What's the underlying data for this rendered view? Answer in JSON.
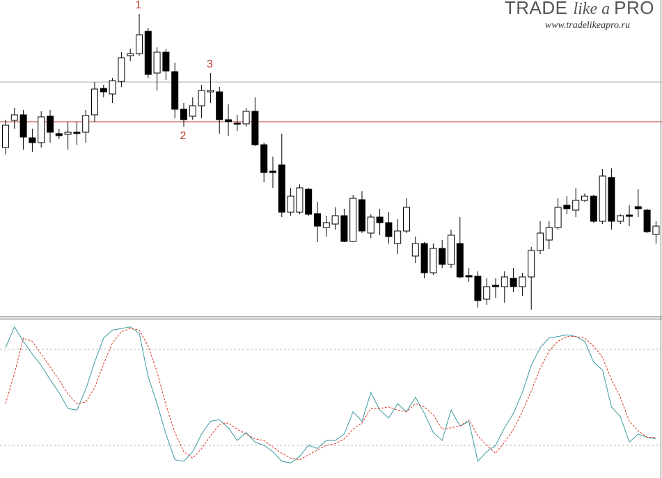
{
  "chart_data": [
    {
      "type": "candlestick",
      "ylim": [
        0,
        455
      ],
      "up_color": "#ffffff",
      "down_color": "#000000",
      "edge_color": "#000000",
      "open": [
        243,
        282,
        290,
        257,
        250,
        288,
        263,
        262,
        265,
        265,
        290,
        328,
        320,
        338,
        375,
        378,
        410,
        350,
        380,
        352,
        298,
        288,
        303,
        323,
        323,
        283,
        278,
        277,
        295,
        247,
        209,
        218,
        150,
        150,
        183,
        148,
        128,
        133,
        145,
        108,
        168,
        120,
        143,
        135,
        105,
        123,
        87,
        105,
        63,
        98,
        75,
        105,
        59,
        58,
        25,
        45,
        43,
        55,
        43,
        57,
        95,
        110,
        128,
        160,
        153,
        167,
        173,
        137,
        200,
        137,
        146,
        158,
        153,
        118
      ],
      "high": [
        283,
        300,
        297,
        270,
        295,
        297,
        270,
        280,
        280,
        297,
        337,
        333,
        343,
        380,
        385,
        435,
        415,
        387,
        385,
        365,
        307,
        315,
        333,
        350,
        330,
        305,
        290,
        300,
        315,
        250,
        230,
        263,
        185,
        190,
        185,
        165,
        145,
        157,
        155,
        175,
        180,
        147,
        155,
        150,
        140,
        170,
        115,
        107,
        105,
        110,
        125,
        143,
        70,
        65,
        55,
        55,
        65,
        70,
        63,
        100,
        137,
        137,
        170,
        173,
        185,
        177,
        175,
        212,
        213,
        147,
        160,
        183,
        155,
        137
      ],
      "low": [
        233,
        270,
        240,
        237,
        243,
        250,
        255,
        240,
        247,
        250,
        280,
        315,
        307,
        330,
        367,
        375,
        343,
        325,
        340,
        285,
        273,
        283,
        285,
        307,
        263,
        260,
        267,
        273,
        245,
        193,
        185,
        143,
        145,
        147,
        145,
        107,
        115,
        125,
        107,
        107,
        120,
        113,
        117,
        105,
        90,
        120,
        77,
        55,
        60,
        70,
        70,
        55,
        50,
        13,
        17,
        27,
        20,
        35,
        30,
        10,
        90,
        97,
        125,
        147,
        143,
        165,
        135,
        133,
        125,
        133,
        130,
        143,
        120,
        105
      ],
      "close": [
        275,
        290,
        258,
        250,
        287,
        265,
        260,
        265,
        263,
        289,
        327,
        323,
        339,
        372,
        378,
        405,
        348,
        380,
        353,
        298,
        283,
        303,
        325,
        325,
        283,
        280,
        277,
        295,
        247,
        207,
        207,
        150,
        173,
        185,
        147,
        130,
        135,
        145,
        108,
        170,
        123,
        143,
        135,
        115,
        123,
        157,
        105,
        63,
        98,
        75,
        117,
        57,
        57,
        23,
        43,
        43,
        57,
        43,
        57,
        95,
        120,
        128,
        157,
        155,
        167,
        173,
        137,
        202,
        137,
        145,
        144,
        155,
        122,
        130
      ],
      "hlines": [
        {
          "value": 337,
          "color": "#a8a8a8"
        },
        {
          "value": 280,
          "color": "#c0392b"
        }
      ],
      "annotations": [
        {
          "text": "1",
          "candle": 15,
          "position": "above"
        },
        {
          "text": "2",
          "candle": 20,
          "position": "below"
        },
        {
          "text": "3",
          "candle": 23,
          "position": "above"
        }
      ]
    },
    {
      "type": "line",
      "ylim": [
        0,
        100
      ],
      "levels": [
        20,
        80
      ],
      "series": [
        {
          "color": "#3a9aa0",
          "dash": false,
          "values": [
            81,
            94,
            85,
            77,
            70,
            61,
            53,
            43,
            42,
            55,
            72,
            87,
            92,
            93,
            94,
            90,
            63,
            46,
            27,
            11,
            10,
            16,
            27,
            35,
            36,
            31,
            23,
            28,
            22,
            20,
            16,
            10,
            9,
            13,
            20,
            18,
            23,
            23,
            27,
            41,
            35,
            53,
            42,
            37,
            46,
            41,
            50,
            40,
            28,
            23,
            42,
            32,
            35,
            10,
            16,
            20,
            31,
            40,
            53,
            70,
            81,
            87,
            88,
            89,
            88,
            85,
            72,
            67,
            44,
            38,
            22,
            27,
            25,
            24
          ]
        },
        {
          "color": "#d9331f",
          "dash": true,
          "values": [
            46,
            65,
            87,
            85,
            77,
            69,
            61,
            52,
            46,
            47,
            56,
            71,
            84,
            91,
            93,
            92,
            82,
            66,
            45,
            28,
            16,
            12,
            18,
            26,
            33,
            34,
            30,
            27,
            24,
            23,
            19,
            15,
            12,
            11,
            14,
            17,
            20,
            21,
            24,
            30,
            34,
            43,
            43,
            44,
            42,
            41,
            46,
            44,
            39,
            30,
            31,
            32,
            36,
            26,
            20,
            15,
            22,
            30,
            41,
            54,
            68,
            79,
            85,
            88,
            88,
            87,
            82,
            75,
            61,
            50,
            35,
            29,
            25,
            25
          ]
        }
      ]
    }
  ],
  "logo": {
    "parts": [
      "TRADE",
      "like a",
      "PRO"
    ],
    "url": "www.tradelikeapro.ru"
  }
}
